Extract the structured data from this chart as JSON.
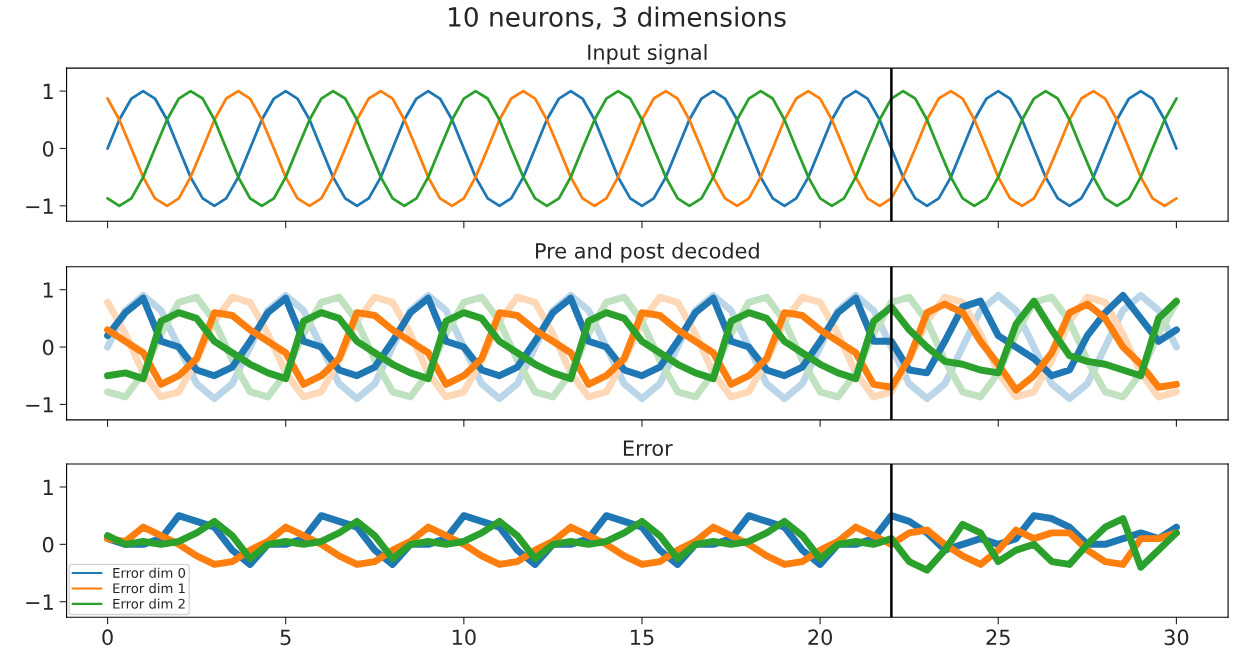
{
  "chart_data": [
    {
      "type": "line",
      "title": "Input signal",
      "annotations": [
        "10 neurons, 3 dimensions"
      ],
      "x": [
        0,
        0.33,
        0.67,
        1,
        1.33,
        1.67,
        2,
        2.33,
        2.67,
        3,
        3.33,
        3.67,
        4,
        4.33,
        4.67,
        5,
        5.33,
        5.67,
        6,
        6.33,
        6.67,
        7,
        7.33,
        7.67,
        8,
        8.33,
        8.67,
        9,
        9.33,
        9.67,
        10,
        10.33,
        10.67,
        11,
        11.33,
        11.67,
        12,
        12.33,
        12.67,
        13,
        13.33,
        13.67,
        14,
        14.33,
        14.67,
        15,
        15.33,
        15.67,
        16,
        16.33,
        16.67,
        17,
        17.33,
        17.67,
        18,
        18.33,
        18.67,
        19,
        19.33,
        19.67,
        20,
        20.33,
        20.67,
        21,
        21.33,
        21.67,
        22,
        22.33,
        22.67,
        23,
        23.33,
        23.67,
        24,
        24.33,
        24.67,
        25,
        25.33,
        25.67,
        26,
        26.33,
        26.67,
        27,
        27.33,
        27.67,
        28,
        28.33,
        28.67,
        29,
        29.33,
        29.67,
        30
      ],
      "series": [
        {
          "color": "#1f77b4",
          "values": [
            0,
            0.5,
            0.87,
            1,
            0.87,
            0.5,
            0,
            -0.5,
            -0.87,
            -1,
            -0.87,
            -0.5,
            0,
            0.5,
            0.87,
            1,
            0.87,
            0.5,
            0,
            -0.5,
            -0.87,
            -1,
            -0.87,
            -0.5,
            0,
            0.5,
            0.87,
            1,
            0.87,
            0.5,
            0,
            -0.5,
            -0.87,
            -1,
            -0.87,
            -0.5,
            0,
            0.5,
            0.87,
            1,
            0.87,
            0.5,
            0,
            -0.5,
            -0.87,
            -1,
            -0.87,
            -0.5,
            0,
            0.5,
            0.87,
            1,
            0.87,
            0.5,
            0,
            -0.5,
            -0.87,
            -1,
            -0.87,
            -0.5,
            0,
            0.5,
            0.87,
            1,
            0.87,
            0.5,
            0,
            -0.5,
            -0.87,
            -1,
            -0.87,
            -0.5,
            0,
            0.5,
            0.87,
            1,
            0.87,
            0.5,
            0,
            -0.5,
            -0.87,
            -1,
            -0.87,
            -0.5,
            0,
            0.5,
            0.87,
            1,
            0.87,
            0.5,
            0
          ]
        },
        {
          "color": "#ff7f0e",
          "values": [
            0.87,
            0.5,
            0,
            -0.5,
            -0.87,
            -1,
            -0.87,
            -0.5,
            0,
            0.5,
            0.87,
            1,
            0.87,
            0.5,
            0,
            -0.5,
            -0.87,
            -1,
            -0.87,
            -0.5,
            0,
            0.5,
            0.87,
            1,
            0.87,
            0.5,
            0,
            -0.5,
            -0.87,
            -1,
            -0.87,
            -0.5,
            0,
            0.5,
            0.87,
            1,
            0.87,
            0.5,
            0,
            -0.5,
            -0.87,
            -1,
            -0.87,
            -0.5,
            0,
            0.5,
            0.87,
            1,
            0.87,
            0.5,
            0,
            -0.5,
            -0.87,
            -1,
            -0.87,
            -0.5,
            0,
            0.5,
            0.87,
            1,
            0.87,
            0.5,
            0,
            -0.5,
            -0.87,
            -1,
            -0.87,
            -0.5,
            0,
            0.5,
            0.87,
            1,
            0.87,
            0.5,
            0,
            -0.5,
            -0.87,
            -1,
            -0.87,
            -0.5,
            0,
            0.5,
            0.87,
            1,
            0.87,
            0.5,
            0,
            -0.5,
            -0.87,
            -1,
            -0.87
          ]
        },
        {
          "color": "#2ca02c",
          "values": [
            -0.87,
            -1,
            -0.87,
            -0.5,
            0,
            0.5,
            0.87,
            1,
            0.87,
            0.5,
            0,
            -0.5,
            -0.87,
            -1,
            -0.87,
            -0.5,
            0,
            0.5,
            0.87,
            1,
            0.87,
            0.5,
            0,
            -0.5,
            -0.87,
            -1,
            -0.87,
            -0.5,
            0,
            0.5,
            0.87,
            1,
            0.87,
            0.5,
            0,
            -0.5,
            -0.87,
            -1,
            -0.87,
            -0.5,
            0,
            0.5,
            0.87,
            1,
            0.87,
            0.5,
            0,
            -0.5,
            -0.87,
            -1,
            -0.87,
            -0.5,
            0,
            0.5,
            0.87,
            1,
            0.87,
            0.5,
            0,
            -0.5,
            -0.87,
            -1,
            -0.87,
            -0.5,
            0,
            0.5,
            0.87,
            1,
            0.87,
            0.5,
            0,
            -0.5,
            -0.87,
            -1,
            -0.87,
            -0.5,
            0,
            0.5,
            0.87,
            1,
            0.87,
            0.5,
            0,
            -0.5,
            -0.87,
            -1,
            -0.87,
            -0.5,
            0,
            0.5,
            0.87
          ]
        }
      ],
      "xlim": [
        -1.15,
        31.45
      ],
      "ylim": [
        -1.27,
        1.4
      ],
      "xticks": [
        0,
        5,
        10,
        15,
        20,
        25,
        30
      ],
      "yticks": [
        -1,
        0,
        1
      ],
      "tick_labels": "y",
      "grid": false,
      "legend": false,
      "ref_lines": [
        {
          "axis": "x",
          "value": 22,
          "color": "#000000"
        }
      ]
    },
    {
      "type": "line",
      "title": "Pre and post decoded",
      "x": [
        0,
        0.5,
        1,
        1.5,
        2,
        2.5,
        3,
        3.5,
        4,
        4.5,
        5,
        5.5,
        6,
        6.5,
        7,
        7.5,
        8,
        8.5,
        9,
        9.5,
        10,
        10.5,
        11,
        11.5,
        12,
        12.5,
        13,
        13.5,
        14,
        14.5,
        15,
        15.5,
        16,
        16.5,
        17,
        17.5,
        18,
        18.5,
        19,
        19.5,
        20,
        20.5,
        21,
        21.5,
        22,
        22.5,
        23,
        23.5,
        24,
        24.5,
        25,
        25.5,
        26,
        26.5,
        27,
        27.5,
        28,
        28.5,
        29,
        29.5,
        30
      ],
      "series": [
        {
          "color": "#bcd6e9",
          "values": [
            0,
            0.64,
            0.9,
            0.64,
            0,
            -0.64,
            -0.9,
            -0.64,
            0,
            0.64,
            0.9,
            0.64,
            0,
            -0.64,
            -0.9,
            -0.64,
            0,
            0.64,
            0.9,
            0.64,
            0,
            -0.64,
            -0.9,
            -0.64,
            0,
            0.64,
            0.9,
            0.64,
            0,
            -0.64,
            -0.9,
            -0.64,
            0,
            0.64,
            0.9,
            0.64,
            0,
            -0.64,
            -0.9,
            -0.64,
            0,
            0.64,
            0.9,
            0.64,
            0,
            -0.64,
            -0.9,
            -0.64,
            0,
            0.64,
            0.9,
            0.64,
            0,
            -0.64,
            -0.9,
            -0.64,
            0,
            0.64,
            0.9,
            0.64,
            0
          ]
        },
        {
          "color": "#ffd8b7",
          "values": [
            0.78,
            0.23,
            -0.45,
            -0.87,
            -0.78,
            -0.23,
            0.45,
            0.87,
            0.78,
            0.23,
            -0.45,
            -0.87,
            -0.78,
            -0.23,
            0.45,
            0.87,
            0.78,
            0.23,
            -0.45,
            -0.87,
            -0.78,
            -0.23,
            0.45,
            0.87,
            0.78,
            0.23,
            -0.45,
            -0.87,
            -0.78,
            -0.23,
            0.45,
            0.87,
            0.78,
            0.23,
            -0.45,
            -0.87,
            -0.78,
            -0.23,
            0.45,
            0.87,
            0.78,
            0.23,
            -0.45,
            -0.87,
            -0.78,
            -0.23,
            0.45,
            0.87,
            0.78,
            0.23,
            -0.45,
            -0.87,
            -0.78,
            -0.23,
            0.45,
            0.87,
            0.78,
            0.23,
            -0.45,
            -0.87,
            -0.78
          ]
        },
        {
          "color": "#c0e2c0",
          "values": [
            -0.78,
            -0.87,
            -0.45,
            0.23,
            0.78,
            0.87,
            0.45,
            -0.23,
            -0.78,
            -0.87,
            -0.45,
            0.23,
            0.78,
            0.87,
            0.45,
            -0.23,
            -0.78,
            -0.87,
            -0.45,
            0.23,
            0.78,
            0.87,
            0.45,
            -0.23,
            -0.78,
            -0.87,
            -0.45,
            0.23,
            0.78,
            0.87,
            0.45,
            -0.23,
            -0.78,
            -0.87,
            -0.45,
            0.23,
            0.78,
            0.87,
            0.45,
            -0.23,
            -0.78,
            -0.87,
            -0.45,
            0.23,
            0.78,
            0.87,
            0.45,
            -0.23,
            -0.78,
            -0.87,
            -0.45,
            0.23,
            0.78,
            0.87,
            0.45,
            -0.23,
            -0.78,
            -0.87,
            -0.45,
            0.23,
            0.78
          ]
        },
        {
          "color": "#1f77b4",
          "values": [
            0.2,
            0.6,
            0.85,
            0.1,
            0,
            -0.4,
            -0.5,
            -0.35,
            0.1,
            0.6,
            0.85,
            0.1,
            0,
            -0.4,
            -0.5,
            -0.35,
            0.1,
            0.6,
            0.85,
            0.1,
            0,
            -0.4,
            -0.5,
            -0.35,
            0.1,
            0.6,
            0.85,
            0.1,
            0,
            -0.4,
            -0.5,
            -0.35,
            0.1,
            0.6,
            0.85,
            0.1,
            0,
            -0.4,
            -0.5,
            -0.35,
            0.1,
            0.6,
            0.85,
            0.1,
            0.1,
            -0.4,
            -0.45,
            0.1,
            0.7,
            0.8,
            0.2,
            0,
            -0.2,
            -0.5,
            -0.4,
            0.2,
            0.6,
            0.9,
            0.5,
            0.1,
            0.3
          ]
        },
        {
          "color": "#ff7f0e",
          "values": [
            0.3,
            0.1,
            -0.1,
            -0.65,
            -0.5,
            -0.2,
            0.6,
            0.55,
            0.3,
            0.1,
            -0.1,
            -0.65,
            -0.5,
            -0.2,
            0.6,
            0.55,
            0.3,
            0.1,
            -0.1,
            -0.65,
            -0.5,
            -0.2,
            0.6,
            0.55,
            0.3,
            0.1,
            -0.1,
            -0.65,
            -0.5,
            -0.2,
            0.6,
            0.55,
            0.3,
            0.1,
            -0.1,
            -0.65,
            -0.5,
            -0.2,
            0.6,
            0.55,
            0.3,
            0.1,
            -0.1,
            -0.65,
            -0.7,
            -0.2,
            0.6,
            0.75,
            0.6,
            0.1,
            -0.3,
            -0.75,
            -0.5,
            -0.1,
            0.6,
            0.75,
            0.5,
            0,
            -0.3,
            -0.7,
            -0.65
          ]
        },
        {
          "color": "#2ca02c",
          "values": [
            -0.5,
            -0.45,
            -0.55,
            0.45,
            0.6,
            0.5,
            0.1,
            -0.1,
            -0.3,
            -0.45,
            -0.55,
            0.45,
            0.6,
            0.5,
            0.1,
            -0.1,
            -0.3,
            -0.45,
            -0.55,
            0.45,
            0.6,
            0.5,
            0.1,
            -0.1,
            -0.3,
            -0.45,
            -0.55,
            0.45,
            0.6,
            0.5,
            0.1,
            -0.1,
            -0.3,
            -0.45,
            -0.55,
            0.45,
            0.6,
            0.5,
            0.1,
            -0.1,
            -0.3,
            -0.45,
            -0.55,
            0.45,
            0.7,
            0.3,
            0,
            -0.25,
            -0.3,
            -0.4,
            -0.45,
            0.4,
            0.8,
            0.3,
            -0.15,
            -0.25,
            -0.3,
            -0.4,
            -0.5,
            0.5,
            0.8
          ]
        }
      ],
      "xlim": [
        -1.15,
        31.45
      ],
      "ylim": [
        -1.27,
        1.4
      ],
      "xticks": [
        0,
        5,
        10,
        15,
        20,
        25,
        30
      ],
      "yticks": [
        -1,
        0,
        1
      ],
      "tick_labels": "y",
      "grid": false,
      "legend": false,
      "ref_lines": [
        {
          "axis": "x",
          "value": 22,
          "color": "#000000"
        }
      ]
    },
    {
      "type": "line",
      "title": "Error",
      "x": [
        0,
        0.5,
        1,
        1.5,
        2,
        2.5,
        3,
        3.5,
        4,
        4.5,
        5,
        5.5,
        6,
        6.5,
        7,
        7.5,
        8,
        8.5,
        9,
        9.5,
        10,
        10.5,
        11,
        11.5,
        12,
        12.5,
        13,
        13.5,
        14,
        14.5,
        15,
        15.5,
        16,
        16.5,
        17,
        17.5,
        18,
        18.5,
        19,
        19.5,
        20,
        20.5,
        21,
        21.5,
        22,
        22.5,
        23,
        23.5,
        24,
        24.5,
        25,
        25.5,
        26,
        26.5,
        27,
        27.5,
        28,
        28.5,
        29,
        29.5,
        30
      ],
      "series": [
        {
          "name": "Error dim 0",
          "color": "#1f77b4",
          "values": [
            0.1,
            0,
            0,
            0.1,
            0.5,
            0.4,
            0.3,
            -0.1,
            -0.35,
            0,
            0,
            0.1,
            0.5,
            0.4,
            0.3,
            -0.1,
            -0.35,
            0,
            0,
            0.1,
            0.5,
            0.4,
            0.3,
            -0.1,
            -0.35,
            0,
            0,
            0.1,
            0.5,
            0.4,
            0.3,
            -0.1,
            -0.35,
            0,
            0,
            0.1,
            0.5,
            0.4,
            0.3,
            -0.1,
            -0.35,
            0,
            0,
            0.1,
            0.5,
            0.4,
            0.2,
            -0.1,
            0,
            0.1,
            0,
            0.1,
            0.5,
            0.45,
            0.3,
            0,
            0,
            0.1,
            0.2,
            0.1,
            0.3
          ]
        },
        {
          "name": "Error dim 1",
          "color": "#ff7f0e",
          "values": [
            0.1,
            0.05,
            0.3,
            0.15,
            0,
            -0.2,
            -0.35,
            -0.3,
            -0.1,
            0.05,
            0.3,
            0.15,
            0,
            -0.2,
            -0.35,
            -0.3,
            -0.1,
            0.05,
            0.3,
            0.15,
            0,
            -0.2,
            -0.35,
            -0.3,
            -0.1,
            0.05,
            0.3,
            0.15,
            0,
            -0.2,
            -0.35,
            -0.3,
            -0.1,
            0.05,
            0.3,
            0.15,
            0,
            -0.2,
            -0.35,
            -0.3,
            -0.1,
            0.05,
            0.3,
            0.15,
            0,
            0.2,
            0.25,
            0,
            -0.2,
            -0.35,
            -0.1,
            0.25,
            0.1,
            0.2,
            0.2,
            -0.1,
            -0.3,
            -0.35,
            0.1,
            0.1,
            0.2
          ]
        },
        {
          "name": "Error dim 2",
          "color": "#2ca02c",
          "values": [
            0.15,
            0,
            0.05,
            0,
            0.05,
            0.2,
            0.4,
            0.15,
            -0.25,
            0,
            0.05,
            0,
            0.05,
            0.2,
            0.4,
            0.15,
            -0.25,
            0,
            0.05,
            0,
            0.05,
            0.2,
            0.4,
            0.15,
            -0.25,
            0,
            0.05,
            0,
            0.05,
            0.2,
            0.4,
            0.15,
            -0.25,
            0,
            0.05,
            0,
            0.05,
            0.2,
            0.4,
            0.15,
            -0.25,
            0,
            0.05,
            0,
            0.1,
            -0.3,
            -0.45,
            -0.1,
            0.35,
            0.2,
            -0.3,
            -0.1,
            0,
            -0.3,
            -0.35,
            0,
            0.3,
            0.45,
            -0.4,
            -0.1,
            0.2
          ]
        }
      ],
      "xlim": [
        -1.15,
        31.45
      ],
      "ylim": [
        -1.27,
        1.4
      ],
      "xticks": [
        0,
        5,
        10,
        15,
        20,
        25,
        30
      ],
      "yticks": [
        -1,
        0,
        1
      ],
      "grid": false,
      "legend": "bottom left",
      "ref_lines": [
        {
          "axis": "x",
          "value": 22,
          "color": "#000000"
        }
      ]
    }
  ]
}
